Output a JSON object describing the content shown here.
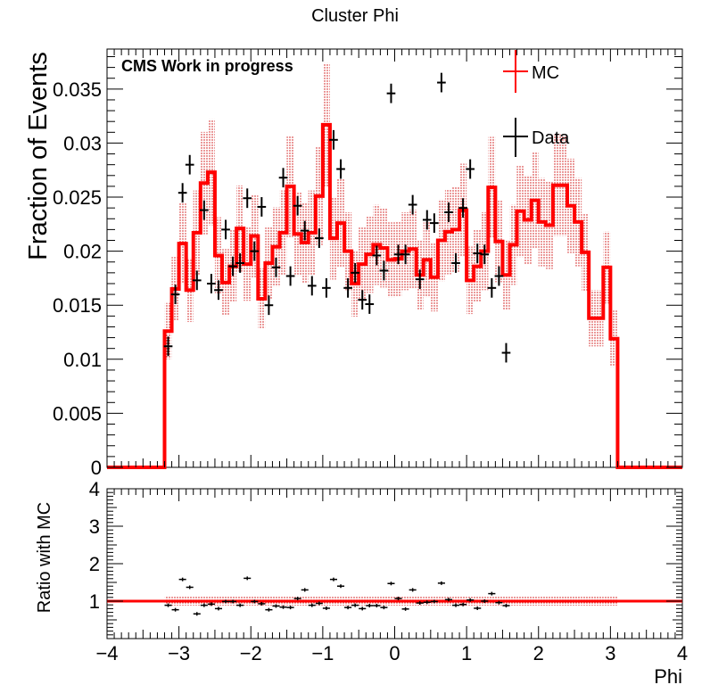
{
  "chart_data": [
    {
      "type": "line",
      "title": "Cluster Phi",
      "annotation": "CMS Work in progress",
      "ylabel": "Fraction of Events",
      "xlim": [
        -4,
        4
      ],
      "ylim": [
        0,
        0.0387
      ],
      "y_ticks": [
        "0",
        "0.005",
        "0.01",
        "0.015",
        "0.02",
        "0.025",
        "0.03",
        "0.035"
      ],
      "legend_position": "top-right",
      "bin_edges": [
        -3.2,
        -3.0,
        -2.8,
        -2.6,
        -2.4,
        -2.2,
        -2.0,
        -1.8,
        -1.6,
        -1.4,
        -1.2,
        -1.0,
        -0.8,
        -0.6,
        -0.4,
        -0.2,
        0.0,
        0.2,
        0.4,
        0.6,
        0.8,
        1.0,
        1.2,
        1.4,
        1.6,
        1.8,
        2.0,
        2.2,
        2.4,
        2.6,
        2.8,
        3.0,
        3.2
      ],
      "series": [
        {
          "name": "MC",
          "style": "histogram",
          "color": "#ff0000",
          "left_edge_points": [
            [
              -3.2,
              0.0126
            ],
            [
              -3.1,
              0.0165
            ],
            [
              -3.0,
              0.0207
            ],
            [
              -2.9,
              0.0164
            ],
            [
              -2.8,
              0.0217
            ],
            [
              -2.7,
              0.0263
            ],
            [
              -2.6,
              0.0273
            ],
            [
              -2.5,
              0.0196
            ],
            [
              -2.4,
              0.0171
            ],
            [
              -2.3,
              0.0186
            ],
            [
              -2.2,
              0.0221
            ],
            [
              -2.1,
              0.0188
            ],
            [
              -2.0,
              0.0214
            ],
            [
              -1.9,
              0.0156
            ],
            [
              -1.8,
              0.0189
            ],
            [
              -1.7,
              0.0204
            ],
            [
              -1.6,
              0.0217
            ],
            [
              -1.5,
              0.026
            ],
            [
              -1.4,
              0.0216
            ],
            [
              -1.3,
              0.0208
            ],
            [
              -1.2,
              0.0217
            ],
            [
              -1.1,
              0.0251
            ],
            [
              -1.0,
              0.0317
            ],
            [
              -0.9,
              0.0212
            ],
            [
              -0.8,
              0.0226
            ],
            [
              -0.7,
              0.02
            ],
            [
              -0.6,
              0.017
            ],
            [
              -0.5,
              0.0188
            ],
            [
              -0.4,
              0.0197
            ],
            [
              -0.3,
              0.0206
            ],
            [
              -0.2,
              0.0203
            ],
            [
              -0.1,
              0.0192
            ],
            [
              0.0,
              0.0193
            ],
            [
              0.1,
              0.02
            ],
            [
              0.2,
              0.0202
            ],
            [
              0.3,
              0.0178
            ],
            [
              0.4,
              0.0192
            ],
            [
              0.5,
              0.0176
            ],
            [
              0.6,
              0.021
            ],
            [
              0.7,
              0.0218
            ],
            [
              0.8,
              0.022
            ],
            [
              0.9,
              0.0238
            ],
            [
              1.0,
              0.0173
            ],
            [
              1.1,
              0.0186
            ],
            [
              1.2,
              0.02
            ],
            [
              1.3,
              0.0259
            ],
            [
              1.4,
              0.0209
            ],
            [
              1.5,
              0.0178
            ],
            [
              1.6,
              0.0206
            ],
            [
              1.7,
              0.0237
            ],
            [
              1.8,
              0.0229
            ],
            [
              1.9,
              0.0247
            ],
            [
              2.0,
              0.0227
            ],
            [
              2.1,
              0.0224
            ],
            [
              2.2,
              0.0261
            ],
            [
              2.3,
              0.0261
            ],
            [
              2.4,
              0.0242
            ],
            [
              2.5,
              0.0227
            ],
            [
              2.6,
              0.0199
            ],
            [
              2.7,
              0.0138
            ],
            [
              2.8,
              0.0138
            ],
            [
              2.9,
              0.0185
            ],
            [
              3.0,
              0.0119
            ],
            [
              3.1,
              0.0
            ]
          ]
        },
        {
          "name": "Data",
          "style": "points",
          "color": "#000000",
          "points": [
            [
              -3.15,
              0.0112
            ],
            [
              -3.05,
              0.016
            ],
            [
              -2.95,
              0.0254
            ],
            [
              -2.85,
              0.028
            ],
            [
              -2.75,
              0.0173
            ],
            [
              -2.65,
              0.0238
            ],
            [
              -2.55,
              0.017
            ],
            [
              -2.45,
              0.0164
            ],
            [
              -2.35,
              0.022
            ],
            [
              -2.25,
              0.0186
            ],
            [
              -2.15,
              0.0189
            ],
            [
              -2.05,
              0.0249
            ],
            [
              -1.95,
              0.02
            ],
            [
              -1.85,
              0.0241
            ],
            [
              -1.75,
              0.015
            ],
            [
              -1.65,
              0.0185
            ],
            [
              -1.55,
              0.0268
            ],
            [
              -1.45,
              0.0177
            ],
            [
              -1.35,
              0.0242
            ],
            [
              -1.25,
              0.0219
            ],
            [
              -1.15,
              0.0168
            ],
            [
              -1.05,
              0.0212
            ],
            [
              -0.95,
              0.0166
            ],
            [
              -0.85,
              0.0303
            ],
            [
              -0.75,
              0.0276
            ],
            [
              -0.65,
              0.0166
            ],
            [
              -0.55,
              0.018
            ],
            [
              -0.45,
              0.0155
            ],
            [
              -0.35,
              0.0151
            ],
            [
              -0.25,
              0.0196
            ],
            [
              -0.15,
              0.0182
            ],
            [
              -0.05,
              0.0346
            ],
            [
              0.05,
              0.0197
            ],
            [
              0.15,
              0.0197
            ],
            [
              0.25,
              0.0243
            ],
            [
              0.35,
              0.0174
            ],
            [
              0.45,
              0.0229
            ],
            [
              0.55,
              0.0226
            ],
            [
              0.65,
              0.0356
            ],
            [
              0.75,
              0.0236
            ],
            [
              0.85,
              0.0189
            ],
            [
              0.95,
              0.024
            ],
            [
              1.05,
              0.0276
            ],
            [
              1.15,
              0.0198
            ],
            [
              1.25,
              0.0197
            ],
            [
              1.35,
              0.0166
            ],
            [
              1.45,
              0.0177
            ],
            [
              1.55,
              0.0106
            ]
          ]
        }
      ]
    },
    {
      "type": "scatter",
      "ylabel": "Ratio with MC",
      "xlabel": "Phi",
      "xlim": [
        -4,
        4
      ],
      "ylim": [
        0,
        4
      ],
      "x_ticks": [
        "−4",
        "−3",
        "−2",
        "−1",
        "0",
        "1",
        "2",
        "3",
        "4"
      ],
      "y_ticks": [
        "1",
        "2",
        "3",
        "4"
      ],
      "reference_line": 1,
      "points": [
        [
          -3.15,
          0.89
        ],
        [
          -3.05,
          0.77
        ],
        [
          -2.95,
          1.58
        ],
        [
          -2.85,
          1.37
        ],
        [
          -2.75,
          0.66
        ],
        [
          -2.65,
          0.89
        ],
        [
          -2.55,
          0.92
        ],
        [
          -2.45,
          0.8
        ],
        [
          -2.35,
          0.99
        ],
        [
          -2.25,
          0.99
        ],
        [
          -2.15,
          0.89
        ],
        [
          -2.05,
          1.61
        ],
        [
          -1.95,
          0.99
        ],
        [
          -1.85,
          0.93
        ],
        [
          -1.75,
          0.77
        ],
        [
          -1.65,
          0.87
        ],
        [
          -1.55,
          0.84
        ],
        [
          -1.45,
          0.83
        ],
        [
          -1.35,
          1.07
        ],
        [
          -1.25,
          1.3
        ],
        [
          -1.15,
          0.89
        ],
        [
          -1.05,
          0.94
        ],
        [
          -0.95,
          0.81
        ],
        [
          -0.85,
          1.58
        ],
        [
          -0.75,
          1.4
        ],
        [
          -0.65,
          0.83
        ],
        [
          -0.55,
          0.89
        ],
        [
          -0.45,
          0.8
        ],
        [
          -0.35,
          0.88
        ],
        [
          -0.25,
          0.88
        ],
        [
          -0.15,
          0.83
        ],
        [
          -0.05,
          1.47
        ],
        [
          0.05,
          1.07
        ],
        [
          0.15,
          0.79
        ],
        [
          0.25,
          1.3
        ],
        [
          0.35,
          0.95
        ],
        [
          0.45,
          0.97
        ],
        [
          0.55,
          0.99
        ],
        [
          0.65,
          1.48
        ],
        [
          0.75,
          1.04
        ],
        [
          0.85,
          0.89
        ],
        [
          0.95,
          0.91
        ],
        [
          1.05,
          1.03
        ],
        [
          1.15,
          0.81
        ],
        [
          1.25,
          1.0
        ],
        [
          1.35,
          1.2
        ],
        [
          1.45,
          0.96
        ],
        [
          1.55,
          0.88
        ]
      ]
    }
  ]
}
